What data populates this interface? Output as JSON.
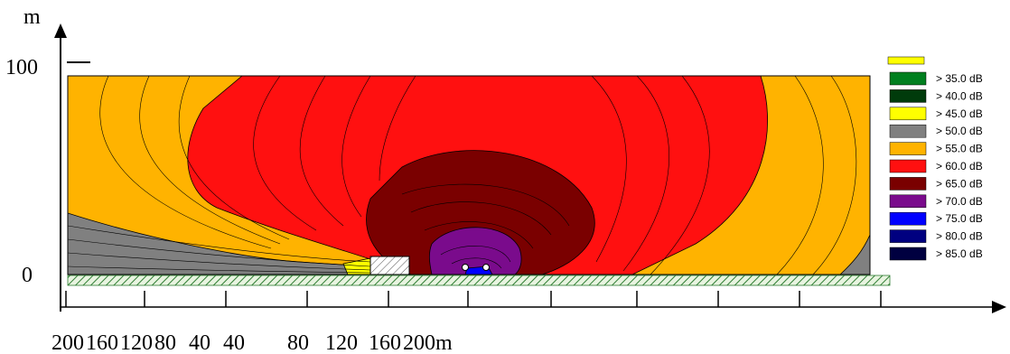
{
  "chart_data": {
    "type": "heatmap",
    "title": "",
    "y_unit": "m",
    "y_tick_labels": [
      "100",
      "0"
    ],
    "x_tick_labels": [
      "200",
      "160",
      "120",
      "80",
      "40",
      "40",
      "80",
      "120",
      "160",
      "200m"
    ],
    "ylim": [
      0,
      100
    ],
    "contour_levels_db": [
      35,
      40,
      45,
      50,
      55,
      60,
      65,
      70,
      75,
      80,
      85
    ],
    "legend": [
      {
        "label": ">  35.0 dB",
        "color": "#007f1f"
      },
      {
        "label": ">  40.0 dB",
        "color": "#003b0b"
      },
      {
        "label": ">  45.0 dB",
        "color": "#ffff00"
      },
      {
        "label": ">  50.0 dB",
        "color": "#808080"
      },
      {
        "label": ">  55.0 dB",
        "color": "#ffb300"
      },
      {
        "label": ">  60.0 dB",
        "color": "#ff1010"
      },
      {
        "label": ">  65.0 dB",
        "color": "#7a0000"
      },
      {
        "label": ">  70.0 dB",
        "color": "#7a0b8c"
      },
      {
        "label": ">  75.0 dB",
        "color": "#0000ff"
      },
      {
        "label": ">  80.0 dB",
        "color": "#000080"
      },
      {
        "label": ">  85.0 dB",
        "color": "#000040"
      }
    ],
    "colors": {
      "band_55": "#ffb300",
      "band_60": "#ff1010",
      "band_65": "#7a0000",
      "band_70": "#7a0b8c",
      "band_75": "#0000ff",
      "band_50": "#808080",
      "band_45": "#ffff00",
      "ground": "#e8f4e0",
      "ground_hatch": "#2e7d32"
    }
  }
}
